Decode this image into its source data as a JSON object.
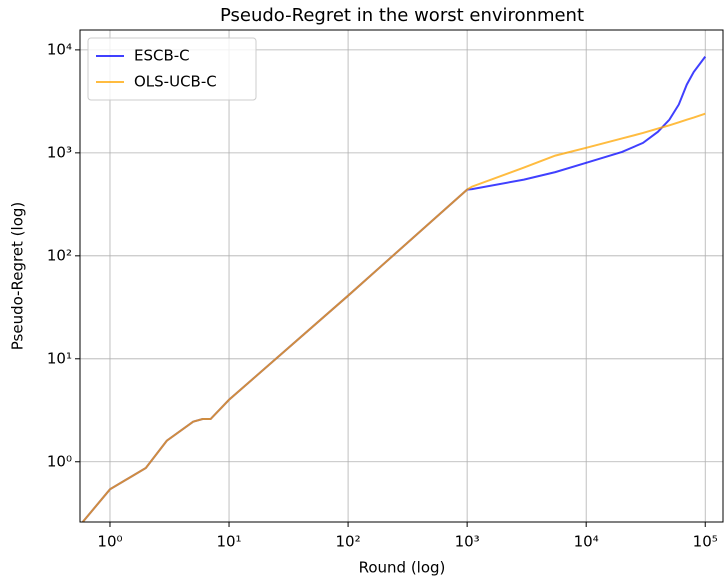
{
  "chart_data": {
    "type": "line",
    "title": "Pseudo-Regret in the worst environment",
    "xlabel": "Round (log)",
    "ylabel": "Pseudo-Regret (log)",
    "x": [
      0.59,
      1,
      2,
      3,
      5,
      6,
      7,
      10,
      100,
      1000,
      1100,
      3000,
      5500,
      10000,
      20000,
      30000,
      40000,
      50000,
      60000,
      70000,
      80000,
      100000
    ],
    "series": [
      {
        "name": "ESCB-C",
        "color": "#0000ff",
        "values": [
          0.26,
          0.54,
          0.87,
          1.6,
          2.45,
          2.6,
          2.6,
          4,
          41,
          440,
          444,
          550,
          650,
          800,
          1020,
          1250,
          1600,
          2100,
          2950,
          4600,
          6100,
          8600
        ]
      },
      {
        "name": "OLS-UCB-C",
        "color": "#ffa500",
        "values": [
          0.26,
          0.54,
          0.87,
          1.6,
          2.45,
          2.6,
          2.6,
          4,
          41,
          440,
          470,
          720,
          940,
          1120,
          1380,
          1560,
          1720,
          1850,
          1980,
          2100,
          2200,
          2400
        ]
      }
    ],
    "alpha": 0.75,
    "xlog": true,
    "ylog": true,
    "xlim": [
      0.56,
      141000
    ],
    "ylim": [
      0.26,
      15600
    ],
    "xticks": [
      {
        "value": 1,
        "label": "10⁰"
      },
      {
        "value": 10,
        "label": "10¹"
      },
      {
        "value": 100,
        "label": "10²"
      },
      {
        "value": 1000,
        "label": "10³"
      },
      {
        "value": 10000,
        "label": "10⁴"
      },
      {
        "value": 100000,
        "label": "10⁵"
      }
    ],
    "yticks": [
      {
        "value": 1,
        "label": "10⁰"
      },
      {
        "value": 10,
        "label": "10¹"
      },
      {
        "value": 100,
        "label": "10²"
      },
      {
        "value": 1000,
        "label": "10³"
      },
      {
        "value": 10000,
        "label": "10⁴"
      }
    ],
    "grid": true,
    "legend": "upper left"
  }
}
